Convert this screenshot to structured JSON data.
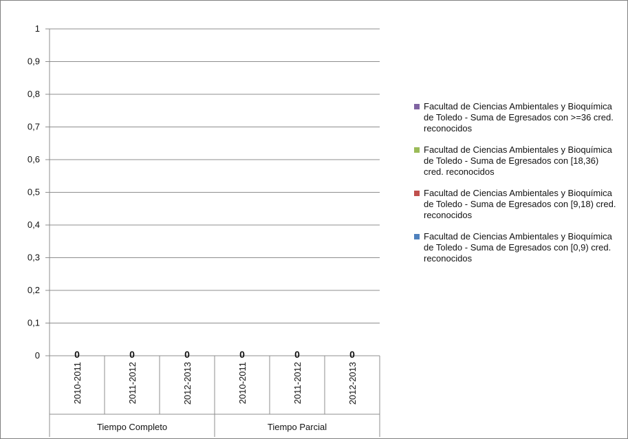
{
  "chart_data": {
    "type": "bar",
    "title": "",
    "xlabel": "",
    "ylabel": "",
    "ylim": [
      0,
      1
    ],
    "yticks": [
      "0",
      "0,1",
      "0,2",
      "0,3",
      "0,4",
      "0,5",
      "0,6",
      "0,7",
      "0,8",
      "0,9",
      "1"
    ],
    "groups": [
      {
        "label": "Tiempo Completo",
        "categories": [
          "2010-2011",
          "2011-2012",
          "2012-2013"
        ]
      },
      {
        "label": "Tiempo Parcial",
        "categories": [
          "2010-2011",
          "2011-2012",
          "2012-2013"
        ]
      }
    ],
    "categories": [
      "2010-2011",
      "2011-2012",
      "2012-2013",
      "2010-2011",
      "2011-2012",
      "2012-2013"
    ],
    "data_labels": [
      "0",
      "0",
      "0",
      "0",
      "0",
      "0"
    ],
    "stacked": true,
    "grid": true,
    "legend_position": "right",
    "series": [
      {
        "name": "Facultad de Ciencias Ambientales y Bioquímica de Toledo - Suma de Egresados con [0,9) cred. reconocidos",
        "color": "#4f81bd",
        "values": [
          0,
          0,
          0,
          0,
          0,
          0
        ]
      },
      {
        "name": "Facultad de Ciencias Ambientales y Bioquímica de Toledo - Suma de Egresados con [9,18) cred. reconocidos",
        "color": "#c0504d",
        "values": [
          0,
          0,
          0,
          0,
          0,
          0
        ]
      },
      {
        "name": "Facultad de Ciencias Ambientales y Bioquímica de Toledo - Suma de Egresados con [18,36) cred. reconocidos",
        "color": "#9bbb59",
        "values": [
          0,
          0,
          0,
          0,
          0,
          0
        ]
      },
      {
        "name": "Facultad de Ciencias Ambientales y Bioquímica de Toledo - Suma de Egresados con >=36 cred. reconocidos",
        "color": "#8064a2",
        "values": [
          0,
          0,
          0,
          0,
          0,
          0
        ]
      }
    ]
  }
}
